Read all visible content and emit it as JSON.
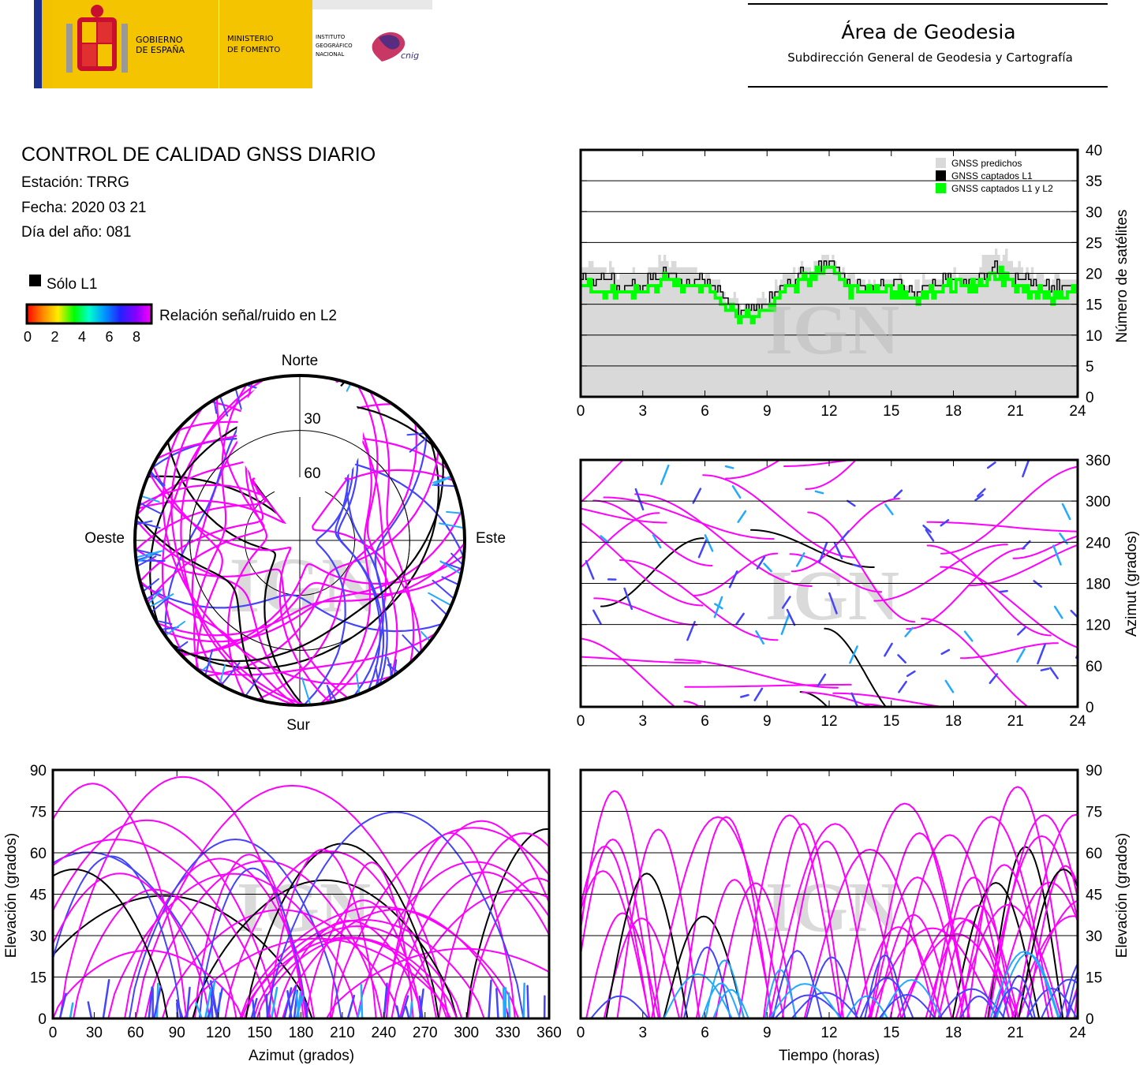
{
  "header": {
    "logo_gov_1": "GOBIERNO",
    "logo_gov_2": "DE ESPAÑA",
    "logo_min_1": "MINISTERIO",
    "logo_min_2": "DE FOMENTO",
    "logo_ign_1": "INSTITUTO",
    "logo_ign_2": "GEOGRÁFICO",
    "logo_ign_3": "NACIONAL",
    "logo_cnig": "cnig",
    "area_title": "Área de Geodesia",
    "area_subtitle": "Subdirección General de Geodesia y Cartografía"
  },
  "report": {
    "title": "CONTROL DE CALIDAD GNSS DIARIO",
    "station": "Estación: TRRG",
    "date": "Fecha: 2020 03 21",
    "doy": "Día del año: 081"
  },
  "legend": {
    "solo_l1": "Sólo L1",
    "snr_label": "Relación señal/ruido en L2",
    "snr_ticks": [
      "0",
      "2",
      "4",
      "6",
      "8"
    ],
    "snr_colors": [
      "#ff0000",
      "#ff8800",
      "#ffff00",
      "#00ff00",
      "#00ffff",
      "#0088ff",
      "#0000ff",
      "#aa00ff",
      "#ff00ff"
    ]
  },
  "watermark": "IGN",
  "colors": {
    "l1_only": "#000000",
    "high_snr": "#ff00ff",
    "predicted": "#d9d9d9",
    "l1l2": "#00ff00",
    "mid_snr": "#4444ff",
    "low_snr": "#22aaff"
  },
  "chart_data": [
    {
      "type": "area",
      "id": "num_sats",
      "ylabel": "Número de satélites",
      "xlim": [
        0,
        24
      ],
      "ylim": [
        0,
        40
      ],
      "xticks": [
        "0",
        "3",
        "6",
        "9",
        "12",
        "15",
        "18",
        "21",
        "24"
      ],
      "yticks": [
        "0",
        "5",
        "10",
        "15",
        "20",
        "25",
        "30",
        "35",
        "40"
      ],
      "legend": [
        "GNSS predichos",
        "GNSS captados L1",
        "GNSS captados L1 y L2"
      ],
      "legend_position": "top-right",
      "grid": true,
      "x": [
        0,
        1,
        2,
        3,
        4,
        5,
        6,
        7,
        8,
        9,
        10,
        11,
        12,
        13,
        14,
        15,
        16,
        17,
        18,
        19,
        20,
        21,
        22,
        23,
        24
      ],
      "series": [
        {
          "name": "GNSS predichos",
          "values": [
            21,
            21,
            20,
            20,
            22,
            21,
            20,
            16,
            15,
            16,
            20,
            21,
            23,
            19,
            19,
            19,
            18,
            19,
            20,
            20,
            24,
            21,
            20,
            19,
            19
          ]
        },
        {
          "name": "GNSS captados L1",
          "values": [
            19,
            19,
            18,
            18,
            20,
            19,
            19,
            15,
            14,
            15,
            19,
            20,
            22,
            18,
            18,
            18,
            17,
            18,
            19,
            19,
            21,
            19,
            18,
            18,
            18
          ]
        },
        {
          "name": "GNSS captados L1 y L2",
          "values": [
            18,
            17,
            17,
            17,
            19,
            18,
            18,
            14,
            13,
            14,
            18,
            19,
            21,
            17,
            17,
            17,
            16,
            17,
            18,
            18,
            20,
            18,
            17,
            16,
            17
          ]
        }
      ]
    },
    {
      "type": "scatter",
      "id": "skyplot",
      "labels": {
        "north": "Norte",
        "south": "Sur",
        "east": "Este",
        "west": "Oeste"
      },
      "rings": [
        "30",
        "60"
      ]
    },
    {
      "type": "scatter",
      "id": "azimuth_time",
      "ylabel": "Azimut (grados)",
      "xlim": [
        0,
        24
      ],
      "ylim": [
        0,
        360
      ],
      "xticks": [
        "0",
        "3",
        "6",
        "9",
        "12",
        "15",
        "18",
        "21",
        "24"
      ],
      "yticks": [
        "0",
        "60",
        "120",
        "180",
        "240",
        "300",
        "360"
      ],
      "grid": true
    },
    {
      "type": "scatter",
      "id": "elev_azimuth",
      "xlabel": "Azimut (grados)",
      "ylabel": "Elevación (grados)",
      "xlim": [
        0,
        360
      ],
      "ylim": [
        0,
        90
      ],
      "xticks": [
        "0",
        "30",
        "60",
        "90",
        "120",
        "150",
        "180",
        "210",
        "240",
        "270",
        "300",
        "330",
        "360"
      ],
      "yticks": [
        "0",
        "15",
        "30",
        "45",
        "60",
        "75",
        "90"
      ],
      "grid": true
    },
    {
      "type": "scatter",
      "id": "elev_time",
      "xlabel": "Tiempo (horas)",
      "ylabel": "Elevación (grados)",
      "xlim": [
        0,
        24
      ],
      "ylim": [
        0,
        90
      ],
      "xticks": [
        "0",
        "3",
        "6",
        "9",
        "12",
        "15",
        "18",
        "21",
        "24"
      ],
      "yticks": [
        "0",
        "15",
        "30",
        "45",
        "60",
        "75",
        "90"
      ],
      "grid": true
    }
  ]
}
